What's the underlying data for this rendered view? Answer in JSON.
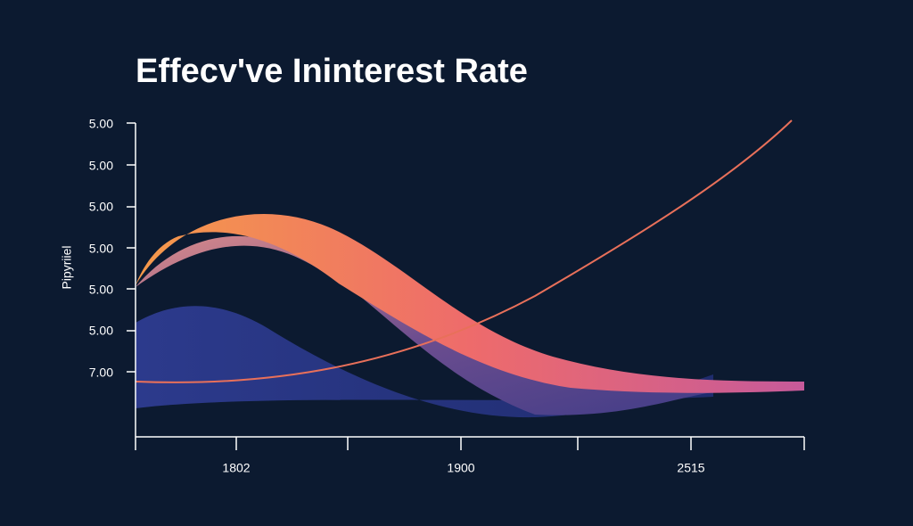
{
  "title": "Effecv've Ininterest Rate",
  "y_axis": {
    "label": "Pipyriiel",
    "tick_labels": [
      "5.00",
      "5.00",
      "5.00",
      "5.00",
      "5.00",
      "5.00",
      "7.00"
    ]
  },
  "x_axis": {
    "tick_labels": [
      "1802",
      "1900",
      "2515"
    ]
  }
}
